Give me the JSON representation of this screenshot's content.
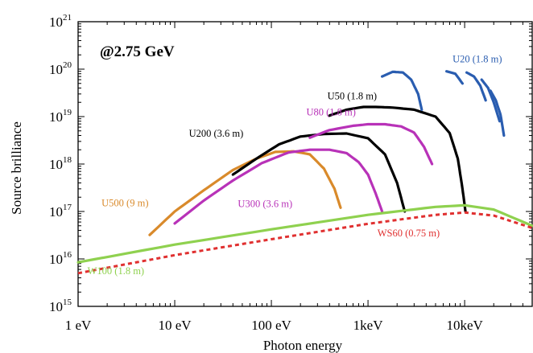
{
  "chart_data": {
    "type": "line",
    "title": "",
    "annotation": "@2.75 GeV",
    "xlabel": "Photon energy",
    "ylabel": "Source brilliance",
    "xscale": "log",
    "yscale": "log",
    "xlim": [
      1,
      50000
    ],
    "ylim": [
      1000000000000000.0,
      1e+21
    ],
    "grid": false,
    "x_ticks": [
      {
        "value": 1,
        "label": "1 eV"
      },
      {
        "value": 10,
        "label": "10 eV"
      },
      {
        "value": 100,
        "label": "100 eV"
      },
      {
        "value": 1000,
        "label": "1keV"
      },
      {
        "value": 10000,
        "label": "10keV"
      }
    ],
    "y_ticks": [
      {
        "value": 1000000000000000.0,
        "base": "10",
        "exp": "15"
      },
      {
        "value": 1e+16,
        "base": "10",
        "exp": "16"
      },
      {
        "value": 1e+17,
        "base": "10",
        "exp": "17"
      },
      {
        "value": 1e+18,
        "base": "10",
        "exp": "18"
      },
      {
        "value": 1e+19,
        "base": "10",
        "exp": "19"
      },
      {
        "value": 1e+20,
        "base": "10",
        "exp": "20"
      },
      {
        "value": 1e+21,
        "base": "10",
        "exp": "21"
      }
    ],
    "series": [
      {
        "name": "U500 (9 m)",
        "color": "#d98a2b",
        "style": "solid",
        "x": [
          5.5,
          10,
          20,
          40,
          70,
          110,
          170,
          250,
          350,
          450,
          520
        ],
        "y": [
          3.2e+16,
          1e+17,
          2.8e+17,
          7.5e+17,
          1.3e+18,
          1.8e+18,
          1.85e+18,
          1.6e+18,
          8e+17,
          3e+17,
          1.2e+17
        ]
      },
      {
        "name": "U300 (3.6 m)",
        "color": "#b832b8",
        "style": "solid",
        "x": [
          10,
          20,
          40,
          80,
          150,
          250,
          400,
          600,
          800,
          1000,
          1200,
          1400
        ],
        "y": [
          5.6e+16,
          1.7e+17,
          4.5e+17,
          1.05e+18,
          1.75e+18,
          2e+18,
          2e+18,
          1.7e+18,
          1.1e+18,
          6e+17,
          2.4e+17,
          1e+17
        ]
      },
      {
        "name": "U200 (3.6 m)",
        "color": "#000000",
        "style": "solid",
        "x": [
          40,
          70,
          120,
          200,
          350,
          600,
          1000,
          1500,
          2000,
          2400
        ],
        "y": [
          6e+17,
          1.3e+18,
          2.6e+18,
          3.8e+18,
          4.3e+18,
          4.4e+18,
          3.5e+18,
          1.6e+18,
          4e+17,
          1e+17
        ]
      },
      {
        "name": "U80 (1.8 m)",
        "color": "#b832b8",
        "style": "solid",
        "x": [
          250,
          400,
          700,
          1000,
          1500,
          2200,
          3000,
          3800,
          4600
        ],
        "y": [
          3.6e+18,
          5.2e+18,
          6.4e+18,
          6.9e+18,
          6.9e+18,
          6.2e+18,
          4.6e+18,
          2.3e+18,
          1e+18
        ]
      },
      {
        "name": "U50 (1.8 m)",
        "color": "#000000",
        "style": "solid",
        "x": [
          400,
          600,
          900,
          1200,
          1800,
          3000,
          5000,
          7000,
          8500,
          9500,
          10200
        ],
        "y": [
          1.05e+19,
          1.4e+19,
          1.6e+19,
          1.6e+19,
          1.55e+19,
          1.4e+19,
          1e+19,
          4.5e+18,
          1.3e+18,
          3e+17,
          1e+17
        ]
      },
      {
        "name": "U20 (1.8 m)",
        "color": "#2a5db0",
        "style": "solid",
        "x": [
          1400,
          1800,
          2300,
          2800,
          3300,
          3600
        ],
        "y": [
          7e+19,
          8.8e+19,
          8.5e+19,
          6e+19,
          3e+19,
          1.4e+19
        ]
      },
      {
        "name": "U20 (1.8 m) (3rd harmonic)",
        "color": "#2a5db0",
        "style": "solid",
        "x": [
          6500,
          8000,
          9500
        ],
        "y": [
          9e+19,
          8e+19,
          5e+19
        ]
      },
      {
        "name": "U20 (1.8 m) (5th harmonic)",
        "color": "#2a5db0",
        "style": "solid",
        "x": [
          10500,
          12500,
          14500,
          16500
        ],
        "y": [
          8.5e+19,
          7e+19,
          4.5e+19,
          2.2e+19
        ]
      },
      {
        "name": "U20 (1.8 m) (7th harmonic)",
        "color": "#2a5db0",
        "style": "solid",
        "x": [
          15000,
          17500,
          20000,
          23000
        ],
        "y": [
          6e+19,
          4e+19,
          2e+19,
          8e+18
        ]
      },
      {
        "name": "U20 (1.8 m) (9th harmonic)",
        "color": "#2a5db0",
        "style": "solid",
        "x": [
          18500,
          21000,
          23500,
          25500
        ],
        "y": [
          3.5e+19,
          2.2e+19,
          1.1e+19,
          4e+18
        ]
      },
      {
        "name": "W100 (1.8 m)",
        "color": "#8fd14f",
        "style": "solid",
        "x": [
          1,
          10,
          100,
          1000,
          5000,
          10000,
          20000,
          50000
        ],
        "y": [
          8500000000000000.0,
          2e+16,
          4.2e+16,
          8.5e+16,
          1.25e+17,
          1.35e+17,
          1.1e+17,
          5e+16
        ]
      },
      {
        "name": "WS60 (0.75 m)",
        "color": "#e03030",
        "style": "dashed",
        "x": [
          1,
          10,
          100,
          1000,
          5000,
          10000,
          20000,
          50000
        ],
        "y": [
          5000000000000000.0,
          1.2e+16,
          2.6e+16,
          5.5e+16,
          8.5e+16,
          9.5e+16,
          8.2e+16,
          4.5e+16
        ]
      }
    ],
    "series_labels": [
      {
        "text": "U500 (9 m)",
        "color": "#d98a2b",
        "x": 1.75,
        "y": 1.3e+17
      },
      {
        "text": "U300 (3.6 m)",
        "color": "#b832b8",
        "x": 45,
        "y": 1.25e+17
      },
      {
        "text": "U200 (3.6 m)",
        "color": "#000000",
        "x": 14,
        "y": 3.8e+18
      },
      {
        "text": "U80 (1.8 m)",
        "color": "#b832b8",
        "x": 230,
        "y": 1.05e+19
      },
      {
        "text": "U50 (1.8 m)",
        "color": "#000000",
        "x": 380,
        "y": 2.3e+19
      },
      {
        "text": "U20 (1.8 m)",
        "color": "#2a5db0",
        "x": 7500,
        "y": 1.4e+20
      },
      {
        "text": "W100 (1.8 m)",
        "color": "#8fd14f",
        "x": 1.25,
        "y": 4800000000000000.0
      },
      {
        "text": "WS60 (0.75 m)",
        "color": "#e03030",
        "x": 1250,
        "y": 3e+16
      }
    ]
  }
}
